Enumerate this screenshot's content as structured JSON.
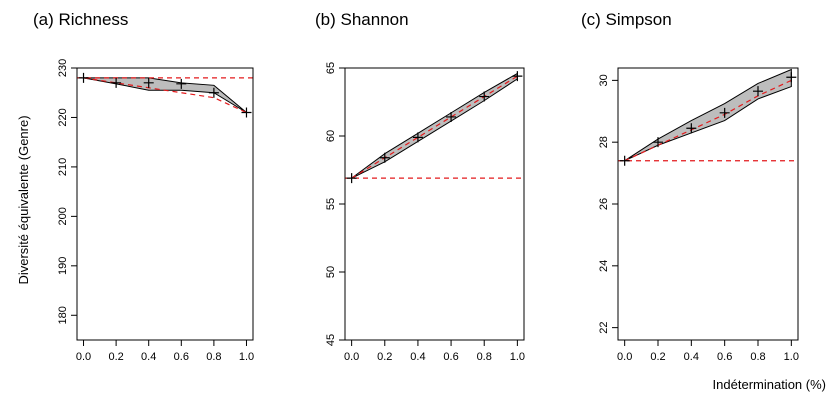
{
  "figure": {
    "ylabel": "Diversité équivalente (Genre)",
    "xlabel": "Indétermination (%)"
  },
  "colors": {
    "band_fill": "#bdbdbd",
    "line": "#000000",
    "reference": "#e31a1c"
  },
  "chart_data": [
    {
      "type": "line",
      "title": "(a) Richness",
      "x": [
        0.0,
        0.2,
        0.4,
        0.6,
        0.8,
        1.0
      ],
      "x_ticks": [
        "0.0",
        "0.2",
        "0.4",
        "0.6",
        "0.8",
        "1.0"
      ],
      "xlim": [
        0,
        1
      ],
      "ylim": [
        175,
        230
      ],
      "y_ticks": [
        180,
        190,
        200,
        210,
        220,
        230
      ],
      "series": [
        {
          "role": "mean",
          "marker": "+",
          "values": [
            228,
            227,
            227,
            226.8,
            225,
            221
          ]
        },
        {
          "role": "upper",
          "values": [
            228,
            228,
            228,
            227,
            226.5,
            221
          ]
        },
        {
          "role": "lower",
          "values": [
            228,
            226.8,
            225.5,
            225.5,
            225,
            221
          ]
        },
        {
          "role": "expected",
          "style": "dashed",
          "values": [
            228,
            227,
            226,
            225,
            224,
            221
          ]
        },
        {
          "role": "reference",
          "style": "dashed",
          "value": 228
        }
      ]
    },
    {
      "type": "line",
      "title": "(b) Shannon",
      "x": [
        0.0,
        0.2,
        0.4,
        0.6,
        0.8,
        1.0
      ],
      "x_ticks": [
        "0.0",
        "0.2",
        "0.4",
        "0.6",
        "0.8",
        "1.0"
      ],
      "xlim": [
        0,
        1
      ],
      "ylim": [
        45,
        65
      ],
      "y_ticks": [
        45,
        50,
        55,
        60,
        65
      ],
      "series": [
        {
          "role": "mean",
          "marker": "+",
          "values": [
            56.9,
            58.4,
            59.9,
            61.4,
            62.9,
            64.4
          ]
        },
        {
          "role": "upper",
          "values": [
            56.9,
            58.7,
            60.2,
            61.7,
            63.2,
            64.6
          ]
        },
        {
          "role": "lower",
          "values": [
            56.9,
            58.1,
            59.6,
            61.1,
            62.6,
            64.2
          ]
        },
        {
          "role": "expected",
          "style": "dashed",
          "values": [
            56.9,
            58.4,
            59.9,
            61.4,
            62.9,
            64.4
          ]
        },
        {
          "role": "reference",
          "style": "dashed",
          "value": 56.9
        }
      ]
    },
    {
      "type": "line",
      "title": "(c) Simpson",
      "x": [
        0.0,
        0.2,
        0.4,
        0.6,
        0.8,
        1.0
      ],
      "x_ticks": [
        "0.0",
        "0.2",
        "0.4",
        "0.6",
        "0.8",
        "1.0"
      ],
      "xlim": [
        0,
        1
      ],
      "ylim": [
        21.6,
        30.4
      ],
      "y_ticks": [
        22,
        24,
        26,
        28,
        30
      ],
      "series": [
        {
          "role": "mean",
          "marker": "+",
          "values": [
            27.4,
            28.0,
            28.45,
            28.95,
            29.65,
            30.1
          ]
        },
        {
          "role": "upper",
          "values": [
            27.4,
            28.1,
            28.7,
            29.25,
            29.9,
            30.35
          ]
        },
        {
          "role": "lower",
          "values": [
            27.4,
            27.9,
            28.3,
            28.7,
            29.4,
            29.8
          ]
        },
        {
          "role": "expected",
          "style": "dashed",
          "values": [
            27.4,
            27.9,
            28.4,
            28.9,
            29.5,
            30.0
          ]
        },
        {
          "role": "reference",
          "style": "dashed",
          "value": 27.4
        }
      ]
    }
  ]
}
